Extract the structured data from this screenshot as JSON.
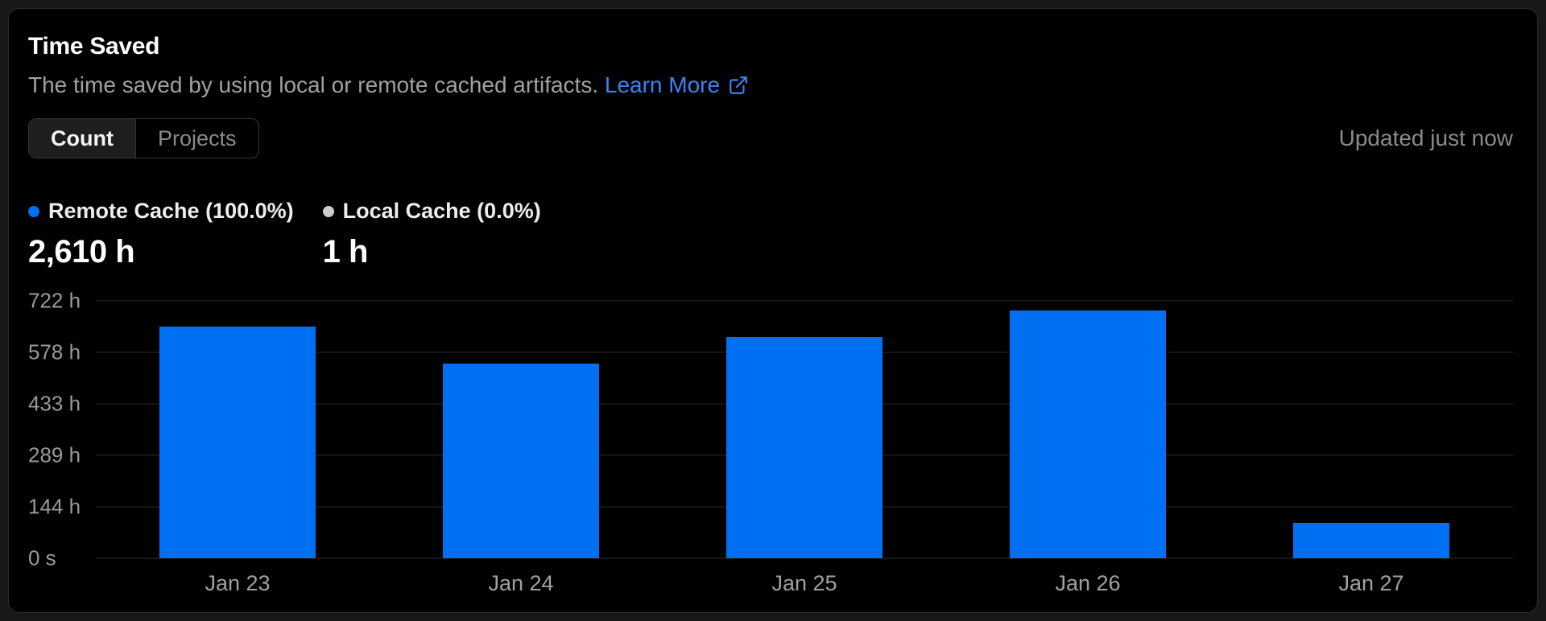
{
  "header": {
    "title": "Time Saved",
    "description": "The time saved by using local or remote cached artifacts.",
    "learn_more_label": "Learn More",
    "updated": "Updated just now"
  },
  "toggle": {
    "options": [
      {
        "label": "Count",
        "selected": true
      },
      {
        "label": "Projects",
        "selected": false
      }
    ]
  },
  "legend": [
    {
      "label": "Remote Cache (100.0%)",
      "value": "2,610 h",
      "color": "#0070f3"
    },
    {
      "label": "Local Cache (0.0%)",
      "value": "1 h",
      "color": "#cccccc"
    }
  ],
  "colors": {
    "accent_blue": "#0070f3",
    "link_blue": "#3b82f6",
    "card_background": "#000000",
    "card_border": "#2c2c2c",
    "gridline": "#2a2a2a"
  },
  "chart_data": {
    "type": "bar",
    "title": "Time Saved",
    "categories": [
      "Jan 23",
      "Jan 24",
      "Jan 25",
      "Jan 26",
      "Jan 27"
    ],
    "series": [
      {
        "name": "Remote Cache",
        "values": [
          650,
          545,
          620,
          695,
          100
        ],
        "color": "#0070f3"
      }
    ],
    "unit": "h",
    "ylim": [
      0,
      722
    ],
    "y_ticks": [
      {
        "label": "722 h",
        "value": 722
      },
      {
        "label": "578 h",
        "value": 578
      },
      {
        "label": "433 h",
        "value": 433
      },
      {
        "label": "289 h",
        "value": 289
      },
      {
        "label": "144 h",
        "value": 144
      },
      {
        "label": "0 s",
        "value": 0
      }
    ],
    "grid": "horizontal",
    "legend_position": "top",
    "totals": {
      "remote_cache": "2,610 h",
      "local_cache": "1 h"
    }
  }
}
